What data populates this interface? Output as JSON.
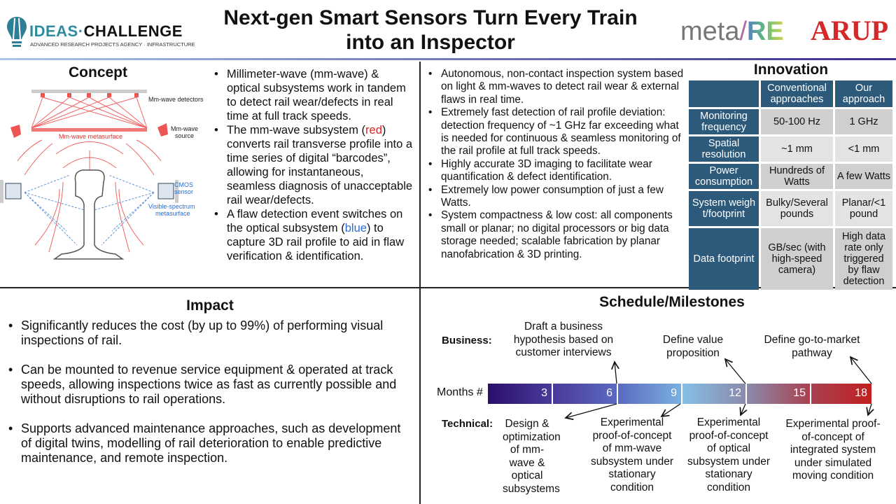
{
  "header": {
    "title": "Next-gen Smart Sensors Turn Every Train into an Inspector",
    "logos": {
      "ideas": "IDEAS·CHALLENGE",
      "ideas_sub": "ADVANCED RESEARCH PROJECTS AGENCY · INFRASTRUCTURE",
      "metare": "meta/RE",
      "arup": "ARUP"
    }
  },
  "concept": {
    "heading": "Concept",
    "diagram_labels": {
      "detectors": "Mm-wave detectors",
      "source": "Mm-wave source",
      "metasurface": "Mm-wave metasurface",
      "cmos": "CMOS sensor",
      "visible": "Visible-spectrum metasurface"
    },
    "bullets": [
      {
        "text": "Millimeter-wave (mm-wave) & optical subsystems work in tandem to detect rail wear/defects in real time at full track speeds."
      },
      {
        "pre": "The mm-wave subsystem (",
        "hl": "red",
        "post": ") converts rail transverse profile into a time series of digital “barcodes”, allowing for instantaneous, seamless diagnosis of unacceptable rail wear/defects."
      },
      {
        "pre": "A flaw detection event switches on the optical subsystem (",
        "hl": "blue",
        "post": ") to capture 3D rail profile to aid in flaw verification & identification."
      }
    ],
    "highlight_colors": {
      "red": "#dd2222",
      "blue": "#2a6fd1"
    }
  },
  "innovation": {
    "heading": "Innovation",
    "bullets": [
      "Autonomous, non-contact inspection system based on light & mm-waves to detect rail wear & external flaws in real time.",
      "Extremely fast detection of rail profile deviation: detection frequency of ~1 GHz far exceeding what is needed for continuous & seamless monitoring of the rail profile at full track speeds.",
      "Highly accurate 3D imaging to facilitate wear quantification & defect identification.",
      "Extremely low power consumption of just a few Watts.",
      "System compactness & low cost: all components small or planar; no digital processors or big data storage needed; scalable fabrication by planar nanofabrication & 3D printing."
    ],
    "table": {
      "columns": [
        "",
        "Conventional approaches",
        "Our approach"
      ],
      "rows": [
        [
          "Monitoring frequency",
          "50-100 Hz",
          "1 GHz"
        ],
        [
          "Spatial resolution",
          "~1 mm",
          "<1 mm"
        ],
        [
          "Power consumption",
          "Hundreds of Watts",
          "A few Watts"
        ],
        [
          "System weight/footprint",
          "Bulky/Several pounds",
          "Planar/<1 pound"
        ],
        [
          "Data footprint",
          "GB/sec (with high-speed camera)",
          "High data rate only triggered by flaw detection"
        ]
      ],
      "header_color": "#2d5a7b"
    }
  },
  "impact": {
    "heading": "Impact",
    "bullets": [
      "Significantly reduces the cost (by up to 99%) of performing visual inspections of rail.",
      "Can be mounted to revenue service equipment & operated at track speeds, allowing inspections twice as fast as currently possible and without disruptions to rail operations.",
      "Supports advanced maintenance approaches, such as development of digital twins, modelling of rail deterioration to enable predictive maintenance, and remote inspection."
    ]
  },
  "schedule": {
    "heading": "Schedule/Milestones",
    "business_label": "Business:",
    "technical_label": "Technical:",
    "months_label": "Months #",
    "months": [
      "3",
      "6",
      "9",
      "12",
      "15",
      "18"
    ],
    "business": [
      "Draft a business hypothesis based on customer interviews",
      "Define value proposition",
      "Define go-to-market pathway"
    ],
    "technical": [
      "Design & optimization of mm-wave & optical subsystems",
      "Experimental proof-of-concept of mm-wave subsystem under stationary condition",
      "Experimental proof-of-concept of optical subsystem under stationary condition",
      "Experimental proof-of-concept of integrated system under simulated moving condition"
    ]
  }
}
